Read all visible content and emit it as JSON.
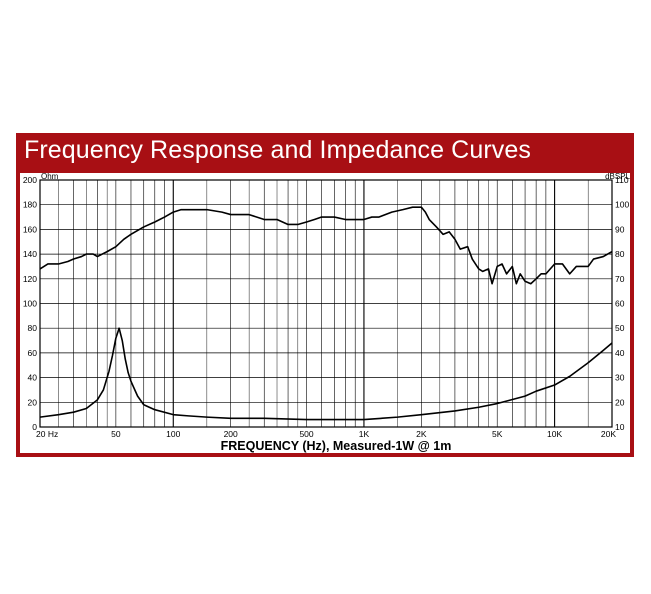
{
  "colors": {
    "frame": "#a80f14",
    "title_text": "#ffffff",
    "plot_line": "#000000",
    "grid": "#000000"
  },
  "chart_data": {
    "type": "line",
    "title": "Frequency Response and Impedance Curves",
    "xlabel": "FREQUENCY (Hz), Measured-1W @ 1m",
    "x_scale": "log",
    "xlim": [
      20,
      20000
    ],
    "x_ticks": [
      {
        "value": 20,
        "label": "20 Hz"
      },
      {
        "value": 50,
        "label": "50"
      },
      {
        "value": 100,
        "label": "100"
      },
      {
        "value": 200,
        "label": "200"
      },
      {
        "value": 500,
        "label": "500"
      },
      {
        "value": 1000,
        "label": "1K"
      },
      {
        "value": 2000,
        "label": "2K"
      },
      {
        "value": 5000,
        "label": "5K"
      },
      {
        "value": 10000,
        "label": "10K"
      },
      {
        "value": 20000,
        "label": "20K"
      }
    ],
    "y_left": {
      "label": "Ohm",
      "range": [
        0,
        200
      ],
      "ticks": [
        0,
        20,
        40,
        60,
        80,
        100,
        120,
        140,
        160,
        180,
        200
      ]
    },
    "y_right": {
      "label": "dBSPL",
      "range": [
        10,
        110
      ],
      "ticks": [
        10,
        20,
        30,
        40,
        50,
        60,
        70,
        80,
        90,
        100,
        110
      ]
    },
    "grid": true,
    "series": [
      {
        "axis": "right",
        "x": [
          20,
          22,
          25,
          28,
          30,
          33,
          35,
          38,
          40,
          45,
          50,
          55,
          60,
          70,
          80,
          90,
          100,
          110,
          120,
          150,
          180,
          200,
          250,
          300,
          350,
          400,
          450,
          500,
          550,
          600,
          700,
          800,
          900,
          1000,
          1100,
          1200,
          1400,
          1600,
          1800,
          2000,
          2100,
          2200,
          2400,
          2600,
          2800,
          3000,
          3200,
          3500,
          3700,
          4000,
          4200,
          4500,
          4700,
          5000,
          5300,
          5600,
          6000,
          6300,
          6600,
          7000,
          7500,
          8000,
          8500,
          9000,
          10000,
          11000,
          12000,
          13000,
          14000,
          15000,
          16000,
          18000,
          20000
        ],
        "values": [
          74,
          76,
          76,
          77,
          78,
          79,
          80,
          80,
          79,
          81,
          83,
          86,
          88,
          91,
          93,
          95,
          97,
          98,
          98,
          98,
          97,
          96,
          96,
          94,
          94,
          92,
          92,
          93,
          94,
          95,
          95,
          94,
          94,
          94,
          95,
          95,
          97,
          98,
          99,
          99,
          97,
          94,
          91,
          88,
          89,
          86,
          82,
          83,
          78,
          74,
          73,
          74,
          68,
          75,
          76,
          72,
          75,
          68,
          72,
          69,
          68,
          70,
          72,
          72,
          76,
          76,
          72,
          75,
          75,
          75,
          78,
          79,
          81
        ]
      },
      {
        "axis": "left",
        "x": [
          20,
          25,
          30,
          35,
          40,
          43,
          46,
          48,
          50,
          52,
          54,
          56,
          58,
          60,
          65,
          70,
          80,
          100,
          120,
          150,
          200,
          300,
          500,
          700,
          1000,
          1500,
          2000,
          3000,
          4000,
          5000,
          7000,
          8000,
          10000,
          12000,
          15000,
          18000,
          20000
        ],
        "values": [
          8,
          10,
          12,
          15,
          22,
          30,
          45,
          58,
          72,
          80,
          70,
          55,
          44,
          37,
          25,
          18,
          14,
          10,
          9,
          8,
          7,
          7,
          6,
          6,
          6,
          8,
          10,
          13,
          16,
          19,
          25,
          29,
          34,
          41,
          52,
          62,
          68
        ]
      }
    ]
  }
}
